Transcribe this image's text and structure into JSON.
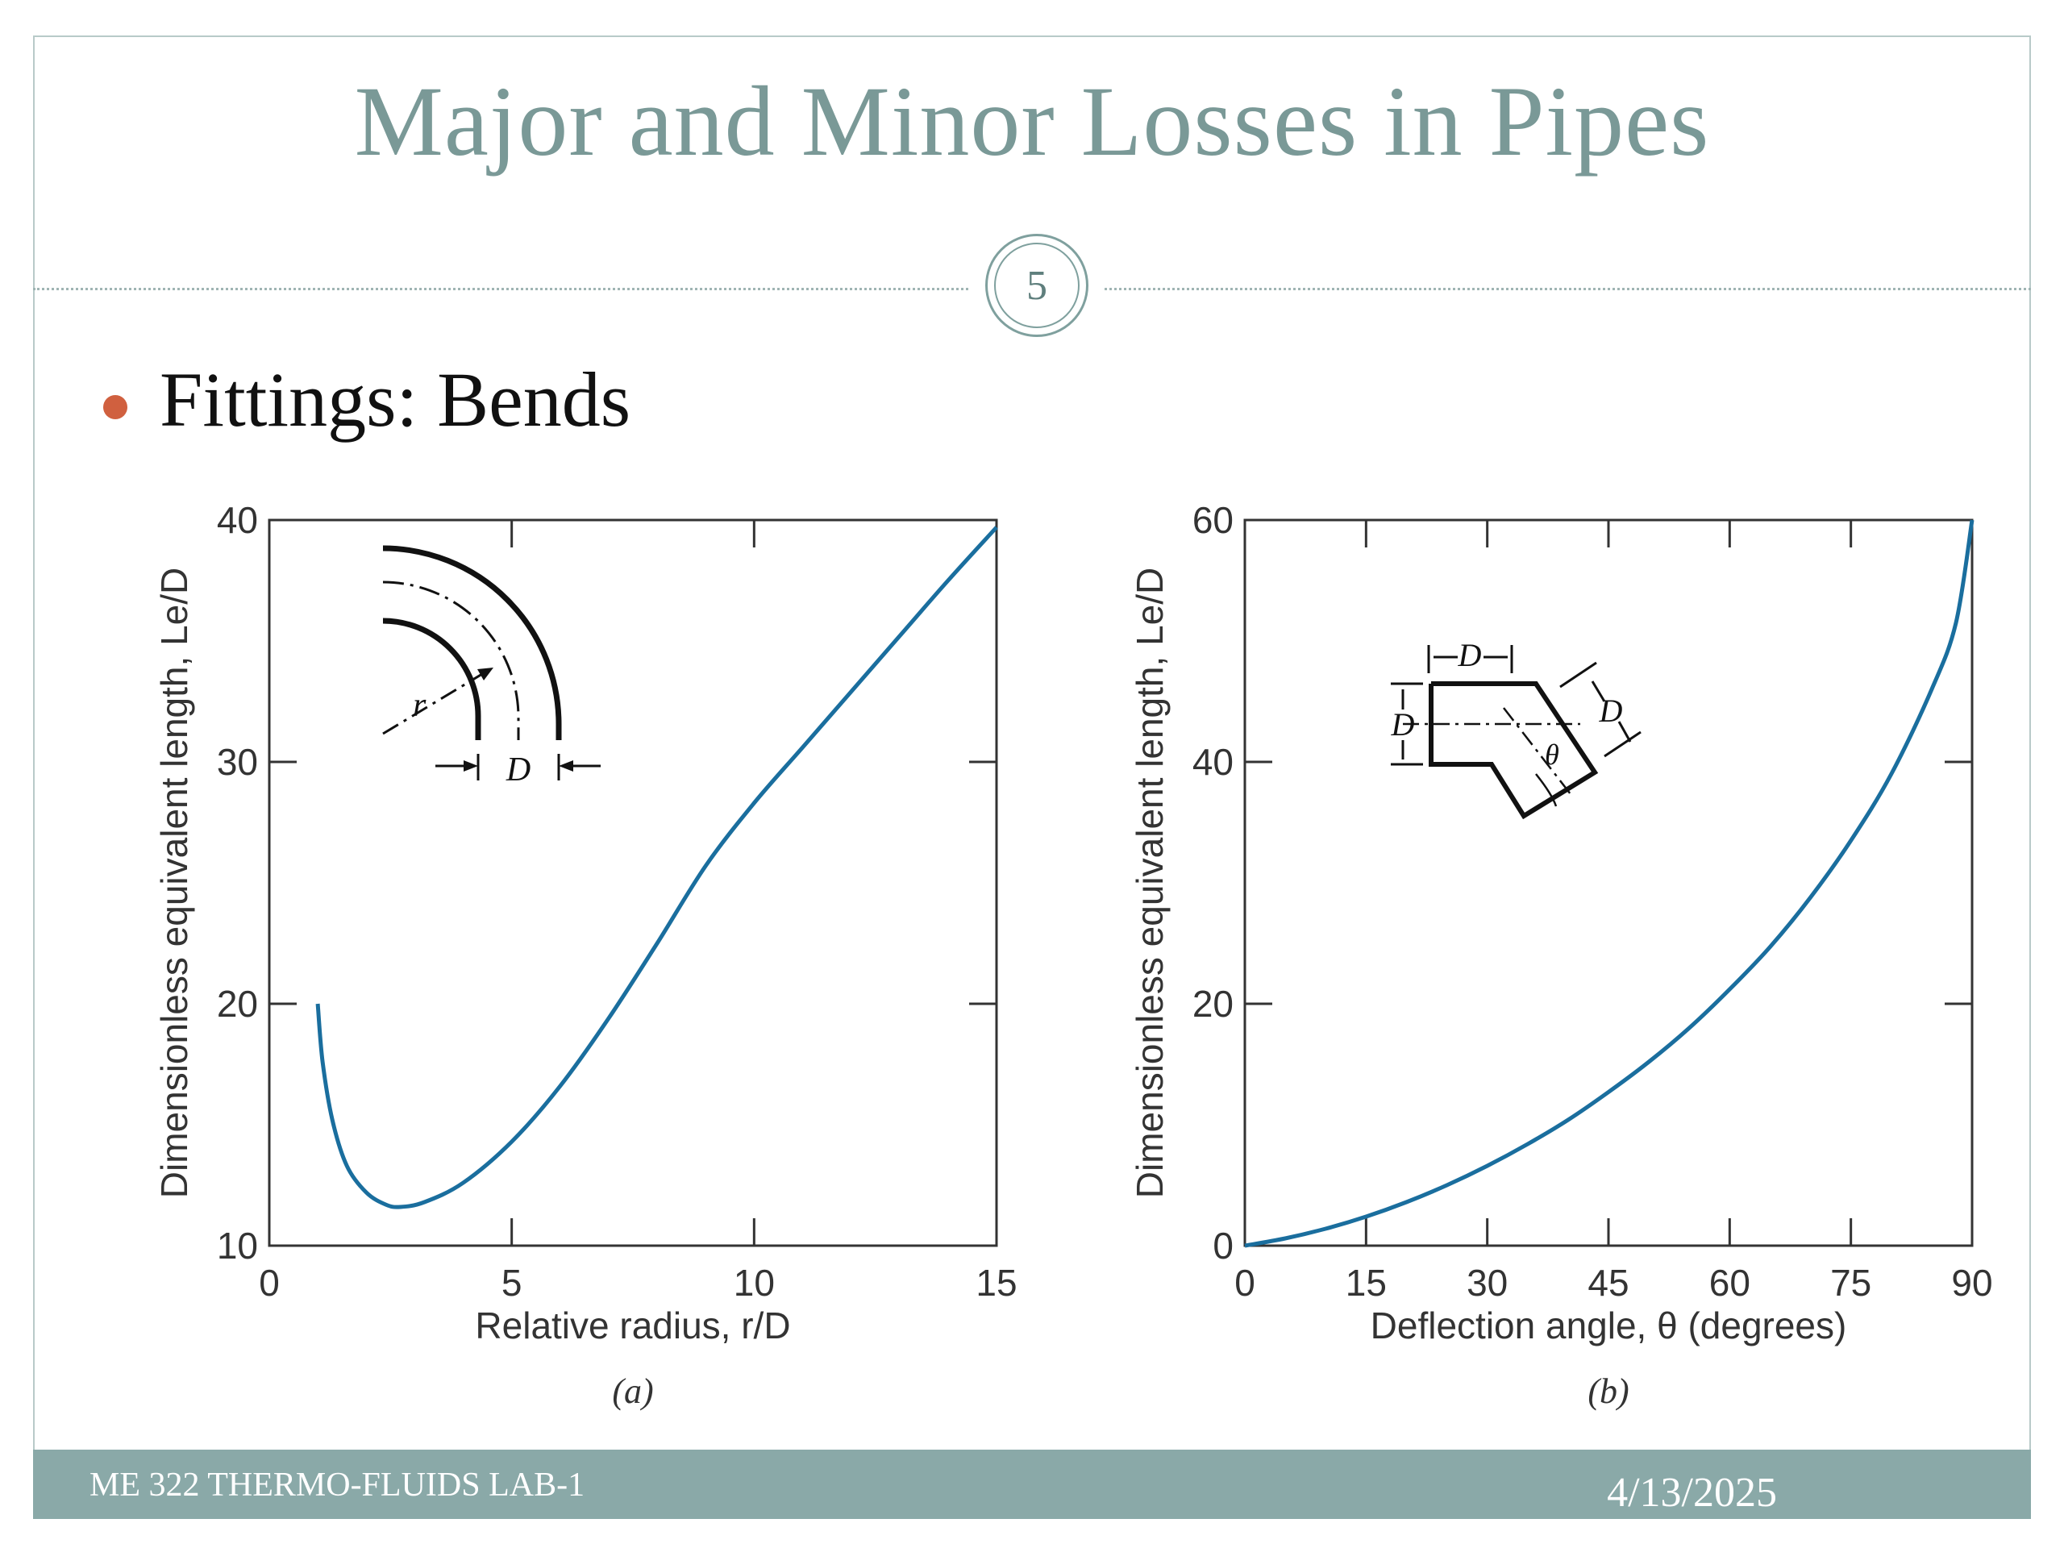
{
  "slide": {
    "title": "Major and Minor Losses in Pipes",
    "slide_number": "5",
    "bullet": "Fittings: Bends",
    "footer_left": "ME 322 THERMO-FLUIDS LAB-1",
    "footer_right": "4/13/2025"
  },
  "colors": {
    "title": "#7a9997",
    "accent": "#8aa9a8",
    "bullet": "#d0603f",
    "curve": "#1a6e9e"
  },
  "chart_data": [
    {
      "type": "line",
      "panel_label": "(a)",
      "xlabel": "Relative radius, r/D",
      "ylabel": "Dimensionless equivalent length, Le/D",
      "xlim": [
        0,
        15
      ],
      "ylim": [
        10,
        40
      ],
      "xticks": [
        0,
        5,
        10,
        15
      ],
      "yticks": [
        10,
        20,
        30,
        40
      ],
      "inset_labels": [
        "r",
        "D"
      ],
      "series": [
        {
          "x": [
            1,
            1.1,
            1.3,
            1.6,
            2.0,
            2.4,
            2.7,
            3.2,
            4.0,
            5.0,
            6.0,
            7.0,
            8.0,
            9.0,
            10.0,
            11.0,
            12.0,
            13.0,
            14.0,
            15.0
          ],
          "y": [
            20,
            17.6,
            15.2,
            13.3,
            12.2,
            11.7,
            11.6,
            11.8,
            12.6,
            14.3,
            16.6,
            19.4,
            22.5,
            25.7,
            28.3,
            30.6,
            32.9,
            35.2,
            37.5,
            39.7
          ]
        }
      ]
    },
    {
      "type": "line",
      "panel_label": "(b)",
      "xlabel": "Deflection angle, θ (degrees)",
      "ylabel": "Dimensionless equivalent length, Le/D",
      "xlim": [
        0,
        90
      ],
      "ylim": [
        0,
        60
      ],
      "xticks": [
        0,
        15,
        30,
        45,
        60,
        75,
        90
      ],
      "yticks": [
        0,
        20,
        40,
        60
      ],
      "inset_labels": [
        "D",
        "D",
        "D",
        "θ"
      ],
      "series": [
        {
          "x": [
            0,
            5,
            10,
            15,
            20,
            25,
            30,
            35,
            40,
            45,
            50,
            55,
            60,
            65,
            70,
            75,
            80,
            85,
            88,
            90
          ],
          "y": [
            0,
            0.6,
            1.4,
            2.4,
            3.6,
            5.0,
            6.6,
            8.4,
            10.4,
            12.7,
            15.2,
            18.0,
            21.2,
            24.7,
            28.8,
            33.5,
            39.0,
            46.0,
            51.5,
            60
          ]
        }
      ]
    }
  ]
}
